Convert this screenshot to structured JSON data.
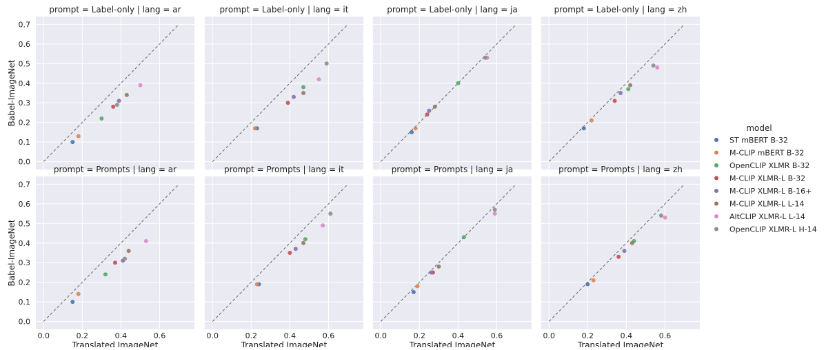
{
  "chart_data": {
    "type": "scatter",
    "xlabel": "Translated ImageNet",
    "ylabel": "Babel-ImageNet",
    "xticks": [
      "0.0",
      "0.2",
      "0.4",
      "0.6"
    ],
    "yticks": [
      "0.0",
      "0.1",
      "0.2",
      "0.3",
      "0.4",
      "0.5",
      "0.6",
      "0.7"
    ],
    "xlim": [
      -0.04,
      0.78
    ],
    "ylim": [
      -0.04,
      0.74
    ],
    "diagonal": [
      0,
      0.7
    ],
    "grid": true,
    "legend": {
      "title": "model",
      "position": "right",
      "items": [
        {
          "name": "ST mBERT B-32",
          "color": "#4c72b0"
        },
        {
          "name": "M-CLIP mBERT B-32",
          "color": "#dd8452"
        },
        {
          "name": "OpenCLIP XLMR B-32",
          "color": "#55a868"
        },
        {
          "name": "M-CLIP XLMR-L B-32",
          "color": "#c44e52"
        },
        {
          "name": "M-CLIP XLMR-L B-16+",
          "color": "#8172b3"
        },
        {
          "name": "M-CLIP XLMR-L L-14",
          "color": "#937860"
        },
        {
          "name": "AltCLIP XLMR-L L-14",
          "color": "#da8bc3"
        },
        {
          "name": "OpenCLIP XLMR-L H-14",
          "color": "#8c8c8c"
        }
      ]
    },
    "panels": [
      {
        "title": "prompt = Label-only | lang = ar",
        "points": [
          [
            0.15,
            0.1
          ],
          [
            0.18,
            0.13
          ],
          [
            0.3,
            0.22
          ],
          [
            0.36,
            0.28
          ],
          [
            0.39,
            0.31
          ],
          [
            0.43,
            0.34
          ],
          [
            0.5,
            0.39
          ],
          [
            0.38,
            0.29
          ]
        ]
      },
      {
        "title": "prompt = Label-only | lang = it",
        "points": [
          [
            0.23,
            0.17
          ],
          [
            0.22,
            0.17
          ],
          [
            0.47,
            0.38
          ],
          [
            0.39,
            0.3
          ],
          [
            0.42,
            0.33
          ],
          [
            0.47,
            0.35
          ],
          [
            0.55,
            0.42
          ],
          [
            0.59,
            0.5
          ]
        ]
      },
      {
        "title": "prompt = Label-only | lang = ja",
        "points": [
          [
            0.16,
            0.15
          ],
          [
            0.18,
            0.17
          ],
          [
            0.4,
            0.4
          ],
          [
            0.24,
            0.24
          ],
          [
            0.25,
            0.26
          ],
          [
            0.28,
            0.28
          ],
          [
            0.55,
            0.53
          ],
          [
            0.54,
            0.53
          ]
        ]
      },
      {
        "title": "prompt = Label-only | lang = zh",
        "points": [
          [
            0.18,
            0.17
          ],
          [
            0.22,
            0.21
          ],
          [
            0.41,
            0.37
          ],
          [
            0.34,
            0.31
          ],
          [
            0.37,
            0.35
          ],
          [
            0.42,
            0.39
          ],
          [
            0.56,
            0.48
          ],
          [
            0.54,
            0.49
          ]
        ]
      },
      {
        "title": "prompt = Prompts | lang = ar",
        "points": [
          [
            0.15,
            0.1
          ],
          [
            0.18,
            0.14
          ],
          [
            0.32,
            0.24
          ],
          [
            0.37,
            0.3
          ],
          [
            0.41,
            0.31
          ],
          [
            0.44,
            0.36
          ],
          [
            0.53,
            0.41
          ],
          [
            0.42,
            0.32
          ]
        ]
      },
      {
        "title": "prompt = Prompts | lang = it",
        "points": [
          [
            0.24,
            0.19
          ],
          [
            0.23,
            0.19
          ],
          [
            0.48,
            0.42
          ],
          [
            0.4,
            0.35
          ],
          [
            0.43,
            0.37
          ],
          [
            0.47,
            0.4
          ],
          [
            0.57,
            0.49
          ],
          [
            0.61,
            0.55
          ]
        ]
      },
      {
        "title": "prompt = Prompts | lang = ja",
        "points": [
          [
            0.17,
            0.15
          ],
          [
            0.19,
            0.18
          ],
          [
            0.43,
            0.43
          ],
          [
            0.27,
            0.25
          ],
          [
            0.26,
            0.25
          ],
          [
            0.3,
            0.28
          ],
          [
            0.59,
            0.55
          ],
          [
            0.59,
            0.57
          ]
        ]
      },
      {
        "title": "prompt = Prompts | lang = zh",
        "points": [
          [
            0.2,
            0.19
          ],
          [
            0.23,
            0.21
          ],
          [
            0.44,
            0.41
          ],
          [
            0.36,
            0.33
          ],
          [
            0.39,
            0.36
          ],
          [
            0.43,
            0.4
          ],
          [
            0.6,
            0.53
          ],
          [
            0.58,
            0.54
          ]
        ]
      }
    ]
  }
}
